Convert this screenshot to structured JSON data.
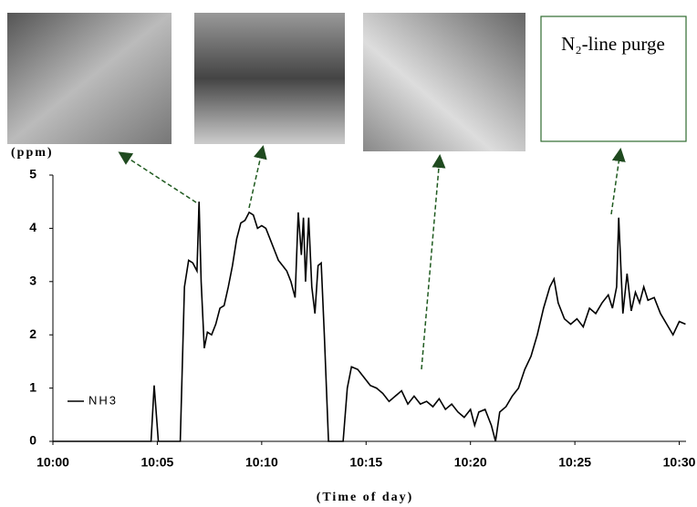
{
  "chart_data": {
    "type": "line",
    "y_label": "(ppm)",
    "x_label": "(Time of day)",
    "annotation": "N₂-line purge",
    "x": [
      0,
      4.7,
      4.85,
      5.05,
      6.1,
      6.3,
      6.5,
      6.7,
      6.9,
      7.0,
      7.1,
      7.25,
      7.4,
      7.6,
      7.8,
      8.0,
      8.2,
      8.4,
      8.6,
      8.8,
      9.0,
      9.2,
      9.4,
      9.6,
      9.8,
      10.0,
      10.2,
      10.4,
      10.6,
      10.8,
      11.0,
      11.2,
      11.4,
      11.6,
      11.75,
      11.9,
      12.0,
      12.1,
      12.25,
      12.4,
      12.55,
      12.7,
      12.85,
      13.0,
      13.2,
      13.9,
      14.1,
      14.3,
      14.6,
      14.9,
      15.2,
      15.5,
      15.8,
      16.1,
      16.4,
      16.7,
      17.0,
      17.3,
      17.6,
      17.9,
      18.2,
      18.5,
      18.8,
      19.1,
      19.4,
      19.7,
      20.0,
      20.2,
      20.4,
      20.7,
      21.0,
      21.2,
      21.4,
      21.7,
      22.0,
      22.3,
      22.6,
      22.9,
      23.2,
      23.5,
      23.8,
      24.0,
      24.2,
      24.5,
      24.8,
      25.1,
      25.4,
      25.7,
      26.0,
      26.3,
      26.6,
      26.8,
      27.0,
      27.1,
      27.3,
      27.5,
      27.7,
      27.9,
      28.1,
      28.3,
      28.5,
      28.8,
      29.1,
      29.4,
      29.7,
      30.0,
      30.3
    ],
    "series": [
      {
        "name": "NH3",
        "color": "#000000",
        "values": [
          0,
          0,
          1.05,
          0,
          0,
          2.9,
          3.4,
          3.35,
          3.2,
          4.5,
          3.0,
          1.75,
          2.05,
          2.0,
          2.2,
          2.5,
          2.55,
          2.9,
          3.3,
          3.8,
          4.1,
          4.15,
          4.3,
          4.25,
          4.0,
          4.05,
          4.0,
          3.8,
          3.6,
          3.4,
          3.3,
          3.2,
          3.0,
          2.7,
          4.3,
          3.5,
          4.2,
          3.0,
          4.2,
          2.9,
          2.4,
          3.3,
          3.35,
          2.0,
          0,
          0,
          1.0,
          1.4,
          1.35,
          1.2,
          1.05,
          1.0,
          0.9,
          0.75,
          0.85,
          0.95,
          0.7,
          0.85,
          0.7,
          0.75,
          0.65,
          0.8,
          0.6,
          0.7,
          0.55,
          0.45,
          0.6,
          0.3,
          0.55,
          0.6,
          0.3,
          0.0,
          0.55,
          0.65,
          0.85,
          1.0,
          1.35,
          1.6,
          2.0,
          2.5,
          2.9,
          3.05,
          2.6,
          2.3,
          2.2,
          2.3,
          2.15,
          2.5,
          2.4,
          2.6,
          2.75,
          2.5,
          2.9,
          4.2,
          2.4,
          3.15,
          2.45,
          2.8,
          2.6,
          2.9,
          2.65,
          2.7,
          2.4,
          2.2,
          2.0,
          2.25,
          2.2
        ]
      }
    ],
    "xlim": [
      0,
      30.5
    ],
    "xticks": [
      {
        "value": 0,
        "label": "10:00"
      },
      {
        "value": 5,
        "label": "10:05"
      },
      {
        "value": 10,
        "label": "10:10"
      },
      {
        "value": 15,
        "label": "10:15"
      },
      {
        "value": 20,
        "label": "10:20"
      },
      {
        "value": 25,
        "label": "10:25"
      },
      {
        "value": 30,
        "label": "10:30"
      }
    ],
    "ylim": [
      0,
      5
    ],
    "yticks": [
      0,
      1,
      2,
      3,
      4,
      5
    ],
    "grid": false,
    "legend": "lower-left"
  }
}
